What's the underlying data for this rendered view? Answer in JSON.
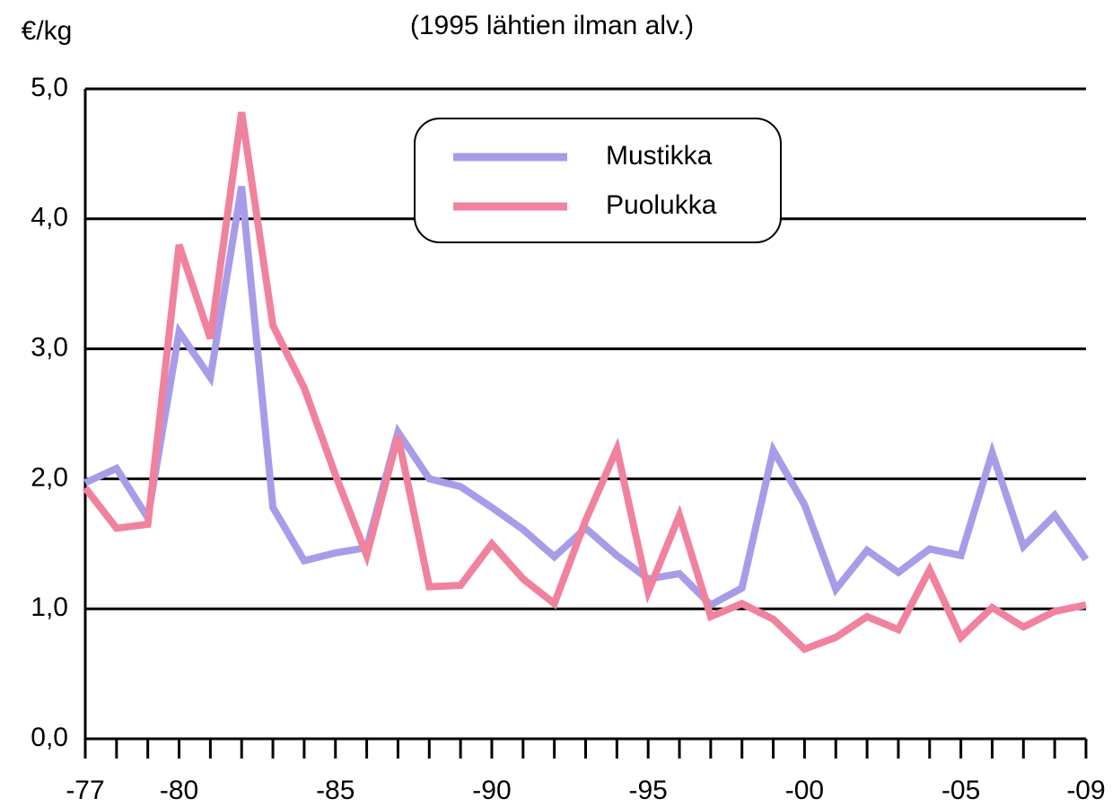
{
  "chart_data": {
    "type": "line",
    "title": "(1995 lähtien ilman alv.)",
    "y_label": "€/kg",
    "categories": [
      "-77",
      null,
      null,
      "-80",
      null,
      null,
      null,
      null,
      "-85",
      null,
      null,
      null,
      null,
      "-90",
      null,
      null,
      null,
      null,
      "-95",
      null,
      null,
      null,
      null,
      "-00",
      null,
      null,
      null,
      null,
      "-05",
      null,
      null,
      null,
      "-09"
    ],
    "series": [
      {
        "name": "Mustikka",
        "color": "#a89ce8",
        "values": [
          1.97,
          2.08,
          1.7,
          3.13,
          2.78,
          4.25,
          1.78,
          1.37,
          1.43,
          1.47,
          2.36,
          2.0,
          1.94,
          1.78,
          1.61,
          1.4,
          1.62,
          1.41,
          1.23,
          1.27,
          1.03,
          1.16,
          2.22,
          1.8,
          1.15,
          1.45,
          1.28,
          1.46,
          1.41,
          2.2,
          1.48,
          1.72,
          1.38
        ]
      },
      {
        "name": "Puolukka",
        "color": "#f0829e",
        "values": [
          1.93,
          1.62,
          1.65,
          3.8,
          3.08,
          4.82,
          3.18,
          2.7,
          2.03,
          1.41,
          2.33,
          1.17,
          1.18,
          1.5,
          1.23,
          1.04,
          1.68,
          2.23,
          1.13,
          1.72,
          0.94,
          1.04,
          0.92,
          0.69,
          0.78,
          0.94,
          0.84,
          1.3,
          0.78,
          1.01,
          0.86,
          0.98,
          1.03
        ]
      }
    ],
    "ylim": [
      0,
      5
    ],
    "yticks": [
      {
        "value": 0,
        "label": "0,0"
      },
      {
        "value": 1,
        "label": "1,0"
      },
      {
        "value": 2,
        "label": "2,0"
      },
      {
        "value": 3,
        "label": "3,0"
      },
      {
        "value": 4,
        "label": "4,0"
      },
      {
        "value": 5,
        "label": "5,0"
      }
    ],
    "grid": true,
    "legend": "top"
  }
}
